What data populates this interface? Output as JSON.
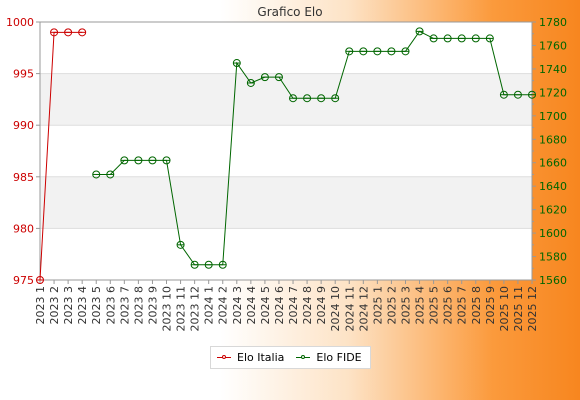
{
  "chart_data": {
    "type": "line",
    "title": "Grafico Elo",
    "categories": [
      "2023 1",
      "2023 2",
      "2023 3",
      "2023 4",
      "2023 5",
      "2023 6",
      "2023 7",
      "2023 8",
      "2023 9",
      "2023 10",
      "2023 11",
      "2023 12",
      "2024 1",
      "2024 2",
      "2024 3",
      "2024 4",
      "2024 5",
      "2024 6",
      "2024 7",
      "2024 8",
      "2024 9",
      "2024 10",
      "2024 11",
      "2024 12",
      "2025 1",
      "2025 2",
      "2025 3",
      "2025 4",
      "2025 5",
      "2025 6",
      "2025 7",
      "2025 8",
      "2025 9",
      "2025 10",
      "2025 11",
      "2025 12"
    ],
    "y_left": {
      "ylim": [
        975,
        1000
      ],
      "ticks": [
        975,
        980,
        985,
        990,
        995,
        1000
      ],
      "color": "#cc0000"
    },
    "y_right": {
      "ylim": [
        1560,
        1780
      ],
      "ticks": [
        1560,
        1580,
        1600,
        1620,
        1640,
        1660,
        1680,
        1700,
        1720,
        1740,
        1760,
        1780
      ],
      "color": "#006600"
    },
    "grid": true,
    "legend_position": "bottom-center",
    "series": [
      {
        "name": "Elo Italia",
        "axis": "left",
        "color": "#cc0000",
        "values": [
          975,
          999,
          999,
          999,
          null,
          null,
          null,
          null,
          null,
          null,
          null,
          null,
          null,
          null,
          null,
          null,
          null,
          null,
          null,
          null,
          null,
          null,
          null,
          null,
          null,
          null,
          null,
          null,
          null,
          null,
          null,
          null,
          null,
          null,
          null,
          null
        ]
      },
      {
        "name": "Elo FIDE",
        "axis": "right",
        "color": "#006600",
        "values": [
          null,
          null,
          null,
          null,
          1650,
          1650,
          1662,
          1662,
          1662,
          1662,
          1590,
          1573,
          1573,
          1573,
          1745,
          1728,
          1733,
          1733,
          1715,
          1715,
          1715,
          1715,
          1755,
          1755,
          1755,
          1755,
          1755,
          1772,
          1766,
          1766,
          1766,
          1766,
          1766,
          1718,
          1718,
          1718
        ]
      }
    ]
  }
}
